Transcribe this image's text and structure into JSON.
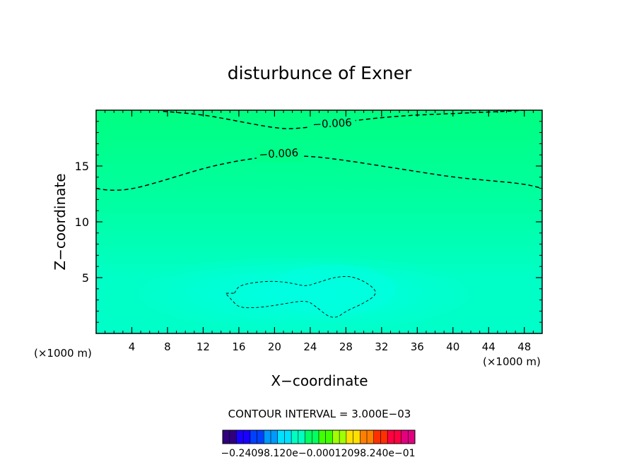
{
  "chart_data": {
    "type": "contour",
    "title": "disturbunce of Exner",
    "xlabel": "X−coordinate",
    "ylabel": "Z−coordinate",
    "x_unit_left": "(×1000 m)",
    "x_unit_right": "(×1000 m)",
    "xlim": [
      0,
      50
    ],
    "ylim": [
      0,
      20
    ],
    "x_ticks": [
      4,
      8,
      12,
      16,
      20,
      24,
      28,
      32,
      36,
      40,
      44,
      48
    ],
    "y_ticks": [
      5,
      10,
      15
    ],
    "contour_interval_label": "CONTOUR INTERVAL = 3.000E−03",
    "contour_interval": 0.003,
    "colors": {
      "field_high_z": "#00ff80",
      "field_low_z": "#00ffd0",
      "contour_line": "#000000"
    },
    "contours": [
      {
        "label": "−0.006",
        "level": -0.006,
        "label_at": [
          24.3,
          18.4
        ],
        "points": [
          [
            7.5,
            19.9
          ],
          [
            12,
            19.6
          ],
          [
            16,
            19.0
          ],
          [
            20,
            18.4
          ],
          [
            22.5,
            18.3
          ],
          [
            28,
            19.0
          ],
          [
            34,
            19.5
          ],
          [
            40,
            19.7
          ],
          [
            46,
            19.9
          ],
          [
            48,
            20.0
          ]
        ]
      },
      {
        "label": "−0.006",
        "level": -0.006,
        "label_at": [
          18.3,
          15.7
        ],
        "points": [
          [
            0,
            13.0
          ],
          [
            1.5,
            12.8
          ],
          [
            4,
            12.9
          ],
          [
            8,
            13.8
          ],
          [
            12,
            14.8
          ],
          [
            16,
            15.5
          ],
          [
            20,
            15.9
          ],
          [
            24,
            15.9
          ],
          [
            28,
            15.5
          ],
          [
            32,
            15.0
          ],
          [
            36,
            14.5
          ],
          [
            40,
            14.0
          ],
          [
            44,
            13.7
          ],
          [
            48,
            13.4
          ],
          [
            50,
            13.0
          ]
        ]
      },
      {
        "label": "",
        "level": -0.009,
        "closed": true,
        "points": [
          [
            15.5,
            3.6
          ],
          [
            16,
            4.3
          ],
          [
            18,
            4.6
          ],
          [
            20,
            4.7
          ],
          [
            22,
            4.5
          ],
          [
            23.5,
            4.2
          ],
          [
            25,
            4.6
          ],
          [
            27,
            5.1
          ],
          [
            29,
            5.1
          ],
          [
            31,
            4.2
          ],
          [
            31.5,
            3.5
          ],
          [
            30,
            2.7
          ],
          [
            28,
            2.0
          ],
          [
            27,
            1.4
          ],
          [
            26,
            1.5
          ],
          [
            24.5,
            2.5
          ],
          [
            23.5,
            3.0
          ],
          [
            20,
            2.5
          ],
          [
            18,
            2.3
          ],
          [
            16,
            2.3
          ],
          [
            15.2,
            3.0
          ],
          [
            14.5,
            3.6
          ]
        ]
      }
    ],
    "colorbar": {
      "labels_text": "−0.24098.120e−0.00012098.240e−01",
      "colors": [
        "#30007f",
        "#1a00ff",
        "#0040ff",
        "#0099ff",
        "#00e0ff",
        "#00ffc0",
        "#00ff60",
        "#40ff00",
        "#a0ff00",
        "#ffe000",
        "#ff8000",
        "#ff3000",
        "#ff0040",
        "#e00080"
      ]
    }
  }
}
